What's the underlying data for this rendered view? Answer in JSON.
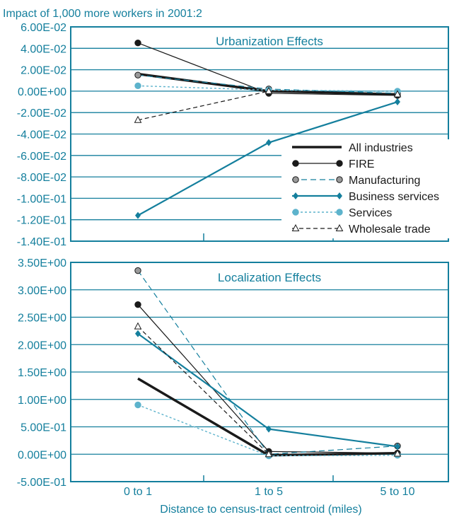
{
  "figure": {
    "top_title": "Impact of 1,000 more workers in 2001:2",
    "xlabel": "Distance to census-tract centroid (miles)"
  },
  "colors": {
    "teal": "#147f9d",
    "light_teal": "#5db3cc",
    "grid": "#147f9d",
    "black": "#1a1a1a",
    "gray_fill": "#9a9a9a"
  },
  "legend": {
    "placement": "lower-right of top panel",
    "items": [
      {
        "label": "All industries",
        "style": "thick-solid",
        "color": "#1a1a1a",
        "marker": "none"
      },
      {
        "label": "FIRE",
        "style": "solid",
        "color": "#1a1a1a",
        "marker": "circle"
      },
      {
        "label": "Manufacturing",
        "style": "dashed",
        "color": "#147f9d",
        "marker": "circle-gray"
      },
      {
        "label": "Business services",
        "style": "solid",
        "color": "#147f9d",
        "marker": "diamond"
      },
      {
        "label": "Services",
        "style": "dotted",
        "color": "#5db3cc",
        "marker": "circle-light"
      },
      {
        "label": "Wholesale trade",
        "style": "dashed-black",
        "color": "#1a1a1a",
        "marker": "triangle"
      }
    ]
  },
  "chart_data": [
    {
      "type": "line",
      "title": "Urbanization Effects",
      "categories": [
        "0 to 1",
        "1 to 5",
        "5 to 10"
      ],
      "ylim": [
        -0.14,
        0.06
      ],
      "yticks": [
        {
          "value": 0.06,
          "label": "6.00E-02"
        },
        {
          "value": 0.04,
          "label": "4.00E-02"
        },
        {
          "value": 0.02,
          "label": "2.00E-02"
        },
        {
          "value": 0.0,
          "label": "0.00E+00"
        },
        {
          "value": -0.02,
          "label": "-2.00E-02"
        },
        {
          "value": -0.04,
          "label": "-4.00E-02"
        },
        {
          "value": -0.06,
          "label": "-6.00E-02"
        },
        {
          "value": -0.08,
          "label": "-8.00E-02"
        },
        {
          "value": -0.1,
          "label": "-1.00E-01"
        },
        {
          "value": -0.12,
          "label": "-1.20E-01"
        },
        {
          "value": -0.14,
          "label": "-1.40E-01"
        }
      ],
      "grid": true,
      "series": [
        {
          "name": "All industries",
          "values": [
            0.016,
            0.0,
            -0.003
          ]
        },
        {
          "name": "FIRE",
          "values": [
            0.045,
            -0.002,
            -0.004
          ]
        },
        {
          "name": "Manufacturing",
          "values": [
            0.015,
            0.002,
            -0.002
          ]
        },
        {
          "name": "Business services",
          "values": [
            -0.116,
            -0.048,
            -0.01
          ]
        },
        {
          "name": "Services",
          "values": [
            0.005,
            0.001,
            0.0
          ]
        },
        {
          "name": "Wholesale trade",
          "values": [
            -0.027,
            0.0,
            -0.003
          ]
        }
      ]
    },
    {
      "type": "line",
      "title": "Localization Effects",
      "categories": [
        "0 to 1",
        "1 to 5",
        "5 to 10"
      ],
      "ylim": [
        -0.5,
        3.5
      ],
      "yticks": [
        {
          "value": 3.5,
          "label": "3.50E+00"
        },
        {
          "value": 3.0,
          "label": "3.00E+00"
        },
        {
          "value": 2.5,
          "label": "2.50E+00"
        },
        {
          "value": 2.0,
          "label": "2.00E+00"
        },
        {
          "value": 1.5,
          "label": "1.50E+00"
        },
        {
          "value": 1.0,
          "label": "1.00E+00"
        },
        {
          "value": 0.5,
          "label": "5.00E-01"
        },
        {
          "value": 0.0,
          "label": "0.00E+00"
        },
        {
          "value": -0.5,
          "label": "-5.00E-01"
        }
      ],
      "grid": true,
      "series": [
        {
          "name": "All industries",
          "values": [
            1.38,
            -0.02,
            0.02
          ]
        },
        {
          "name": "FIRE",
          "values": [
            2.73,
            0.05,
            0.02
          ]
        },
        {
          "name": "Manufacturing",
          "values": [
            3.35,
            0.0,
            0.15
          ]
        },
        {
          "name": "Business services",
          "values": [
            2.2,
            0.46,
            0.14
          ]
        },
        {
          "name": "Services",
          "values": [
            0.9,
            -0.03,
            -0.02
          ]
        },
        {
          "name": "Wholesale trade",
          "values": [
            2.33,
            0.0,
            0.01
          ]
        }
      ]
    }
  ]
}
